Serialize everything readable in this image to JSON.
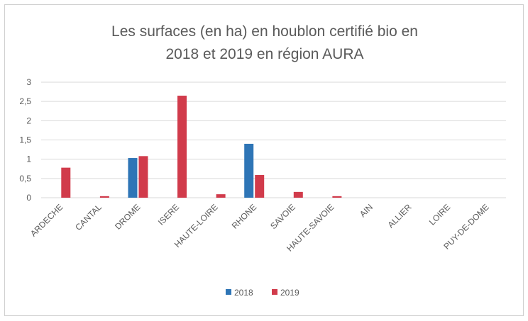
{
  "chart_data": {
    "type": "bar",
    "title": "Les surfaces (en ha) en houblon certifié bio en",
    "subtitle": "2018 et 2019 en région AURA",
    "categories": [
      "ARDECHE",
      "CANTAL",
      "DROME",
      "ISERE",
      "HAUTE-LOIRE",
      "RHONE",
      "SAVOIE",
      "HAUTE-SAVOIE",
      "AIN",
      "ALLIER",
      "LOIRE",
      "PUY-DE-DOME"
    ],
    "series": [
      {
        "name": "2018",
        "color": "#2e75b6",
        "values": [
          0,
          0,
          1.03,
          0,
          0,
          1.4,
          0,
          0,
          0,
          0,
          0,
          0
        ]
      },
      {
        "name": "2019",
        "color": "#d13b4b",
        "values": [
          0.78,
          0.04,
          1.08,
          2.65,
          0.09,
          0.59,
          0.15,
          0.04,
          0,
          0,
          0,
          0
        ]
      }
    ],
    "ylim": [
      0,
      3
    ],
    "yticks": [
      "0",
      "0,5",
      "1",
      "1,5",
      "2",
      "2,5",
      "3"
    ],
    "yticks_values": [
      0,
      0.5,
      1,
      1.5,
      2,
      2.5,
      3
    ],
    "grid": true,
    "legend": "bottom"
  }
}
